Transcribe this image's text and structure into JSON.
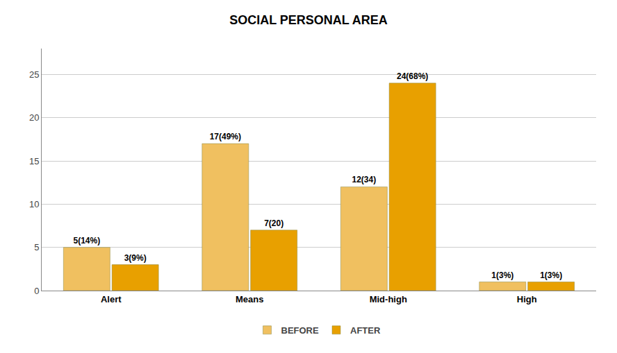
{
  "chart_data": {
    "type": "bar",
    "title": "SOCIAL PERSONAL AREA",
    "categories": [
      "Alert",
      "Means",
      "Mid-high",
      "High"
    ],
    "series": [
      {
        "name": "BEFORE",
        "color": "#F0C060",
        "values": [
          5,
          17,
          12,
          1
        ],
        "value_labels": [
          "5(14%)",
          "17(49%)",
          "12(34)",
          "1(3%)"
        ]
      },
      {
        "name": "AFTER",
        "color": "#E8A000",
        "values": [
          3,
          7,
          24,
          1
        ],
        "value_labels": [
          "3(9%)",
          "7(20)",
          "24(68%)",
          "1(3%)"
        ]
      }
    ],
    "ylim": [
      0,
      28
    ],
    "yticks": [
      0,
      5,
      10,
      15,
      20,
      25
    ],
    "grid": true,
    "legend": "bottom",
    "data_labels": true
  }
}
